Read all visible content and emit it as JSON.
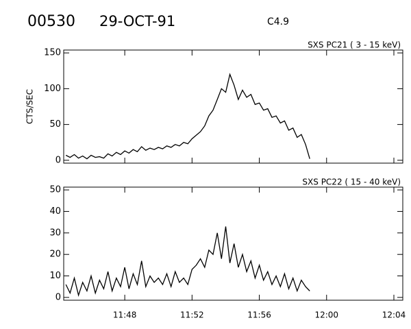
{
  "header": {
    "event": "00530",
    "date": "29-OCT-91",
    "class": "C4.9"
  },
  "chart_data": [
    {
      "type": "line",
      "title": "SXS PC21  (  3 - 15 keV)",
      "ylabel": "CTS/SEC",
      "color": "#000000",
      "x": [
        704.5,
        704.75,
        705,
        705.25,
        705.5,
        705.75,
        706,
        706.25,
        706.5,
        706.75,
        707,
        707.25,
        707.5,
        707.75,
        708,
        708.25,
        708.5,
        708.75,
        709,
        709.25,
        709.5,
        709.75,
        710,
        710.25,
        710.5,
        710.75,
        711,
        711.25,
        711.5,
        711.75,
        712,
        712.25,
        712.5,
        712.75,
        713,
        713.25,
        713.5,
        713.75,
        714,
        714.25,
        714.5,
        714.75,
        715,
        715.25,
        715.5,
        715.75,
        716,
        716.25,
        716.5,
        716.75,
        717,
        717.25,
        717.5,
        717.75,
        718,
        718.25,
        718.5,
        718.75,
        719
      ],
      "values": [
        7,
        4,
        8,
        3,
        6,
        2,
        7,
        4,
        5,
        3,
        9,
        6,
        11,
        8,
        13,
        10,
        15,
        12,
        19,
        14,
        17,
        15,
        18,
        16,
        20,
        18,
        22,
        20,
        25,
        23,
        30,
        35,
        40,
        48,
        62,
        70,
        85,
        100,
        95,
        120,
        105,
        85,
        98,
        88,
        92,
        78,
        80,
        70,
        72,
        60,
        62,
        52,
        55,
        42,
        45,
        32,
        36,
        22,
        2
      ],
      "xlim": [
        704.37,
        724.53
      ],
      "xticks": [
        708,
        712,
        716,
        720,
        724
      ],
      "xtick_labels": false,
      "ylim": [
        -4,
        154
      ],
      "yticks": [
        0,
        50,
        100,
        150
      ]
    },
    {
      "type": "line",
      "title": "SXS PC22  ( 15 - 40 keV)",
      "color": "#000000",
      "x": [
        704.5,
        704.75,
        705,
        705.25,
        705.5,
        705.75,
        706,
        706.25,
        706.5,
        706.75,
        707,
        707.25,
        707.5,
        707.75,
        708,
        708.25,
        708.5,
        708.75,
        709,
        709.25,
        709.5,
        709.75,
        710,
        710.25,
        710.5,
        710.75,
        711,
        711.25,
        711.5,
        711.75,
        712,
        712.25,
        712.5,
        712.75,
        713,
        713.25,
        713.5,
        713.75,
        714,
        714.25,
        714.5,
        714.75,
        715,
        715.25,
        715.5,
        715.75,
        716,
        716.25,
        716.5,
        716.75,
        717,
        717.25,
        717.5,
        717.75,
        718,
        718.25,
        718.5,
        718.75,
        719
      ],
      "values": [
        6,
        2,
        9,
        1,
        7,
        3,
        10,
        2,
        8,
        4,
        12,
        3,
        9,
        5,
        14,
        4,
        11,
        6,
        17,
        5,
        10,
        7,
        9,
        6,
        11,
        5,
        12,
        7,
        9,
        6,
        13,
        15,
        18,
        14,
        22,
        20,
        30,
        18,
        33,
        16,
        25,
        14,
        20,
        12,
        17,
        9,
        15,
        8,
        12,
        6,
        10,
        5,
        11,
        4,
        9,
        3,
        8,
        5,
        3
      ],
      "xlim": [
        704.37,
        724.53
      ],
      "xticks": [
        {
          "value": 708,
          "label": "11:48"
        },
        {
          "value": 712,
          "label": "11:52"
        },
        {
          "value": 716,
          "label": "11:56"
        },
        {
          "value": 720,
          "label": "12:00"
        },
        {
          "value": 724,
          "label": "12:04"
        }
      ],
      "ylim": [
        -1.3,
        51.3
      ],
      "yticks": [
        0,
        10,
        20,
        30,
        40,
        50
      ]
    }
  ]
}
